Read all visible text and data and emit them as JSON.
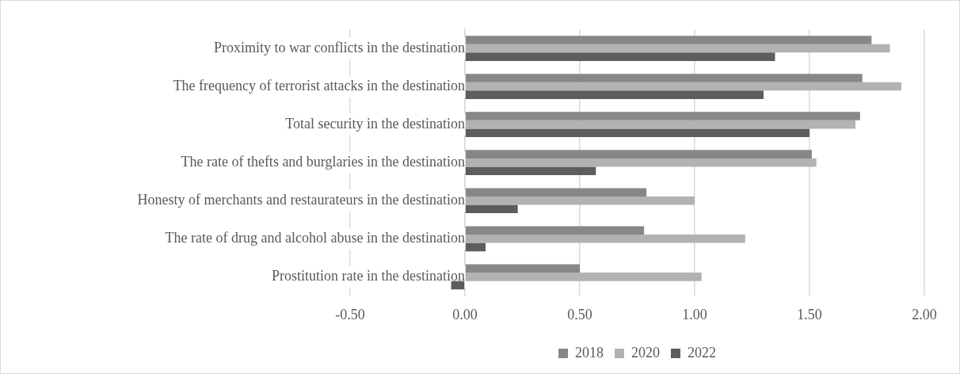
{
  "chart_data": {
    "type": "bar",
    "orientation": "horizontal",
    "categories": [
      "Proximity to war conflicts in the destination",
      "The frequency of terrorist attacks in the destination",
      "Total security in the destination",
      "The rate of thefts and burglaries in the destination",
      "Honesty of merchants and restaurateurs in the destination",
      "The rate of drug and alcohol abuse in the destination",
      "Prostitution rate in the destination"
    ],
    "series": [
      {
        "name": "2018",
        "color": "#878787",
        "values": [
          1.77,
          1.73,
          1.72,
          1.51,
          0.79,
          0.78,
          0.5
        ]
      },
      {
        "name": "2020",
        "color": "#b2b2b2",
        "values": [
          1.85,
          1.9,
          1.7,
          1.53,
          1.0,
          1.22,
          1.03
        ]
      },
      {
        "name": "2022",
        "color": "#5d5d5d",
        "values": [
          1.35,
          1.3,
          1.5,
          0.57,
          0.23,
          0.09,
          -0.06
        ]
      }
    ],
    "xlim": [
      -0.5,
      2.0
    ],
    "xticks": [
      {
        "value": -0.5,
        "label": "-0.50"
      },
      {
        "value": 0,
        "label": "0.00"
      },
      {
        "value": 0.5,
        "label": "0.50"
      },
      {
        "value": 1,
        "label": "1.00"
      },
      {
        "value": 1.5,
        "label": "1.50"
      },
      {
        "value": 2,
        "label": "2.00"
      }
    ],
    "grid": "x",
    "legend": "bottom"
  }
}
